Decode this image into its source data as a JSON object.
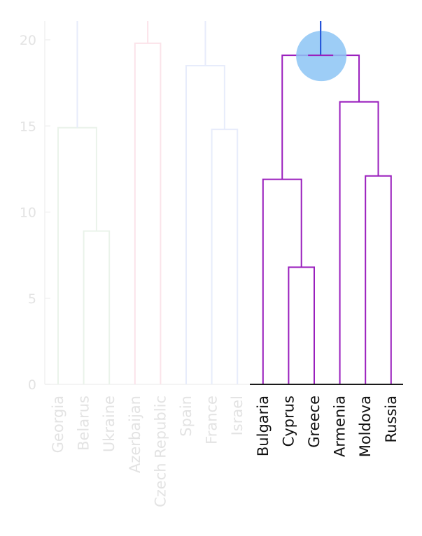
{
  "chart_data": {
    "type": "dendrogram",
    "title": "",
    "xlabel": "",
    "ylabel": "",
    "ylim": [
      0,
      21
    ],
    "yticks": [
      "0",
      "5",
      "10",
      "15",
      "20"
    ],
    "leaves": [
      "Georgia",
      "Belarus",
      "Ukraine",
      "Azerbaijan",
      "Czech Republic",
      "Spain",
      "France",
      "Israel",
      "Bulgaria",
      "Cyprus",
      "Greece",
      "Armenia",
      "Moldova",
      "Russia"
    ],
    "highlighted_leaves": [
      "Bulgaria",
      "Cyprus",
      "Greece",
      "Armenia",
      "Moldova",
      "Russia"
    ],
    "merges": [
      {
        "left": "Belarus",
        "right": "Ukraine",
        "height": 8.9,
        "id": "m1"
      },
      {
        "left": "Georgia",
        "right": "m1",
        "height": 14.9,
        "id": "m2"
      },
      {
        "left": "Azerbaijan",
        "right": "Czech Republic",
        "height": 19.8,
        "id": "m3"
      },
      {
        "left": "France",
        "right": "Israel",
        "height": 14.8,
        "id": "m4"
      },
      {
        "left": "Spain",
        "right": "m4",
        "height": 18.5,
        "id": "m5"
      },
      {
        "left": "Cyprus",
        "right": "Greece",
        "height": 6.8,
        "id": "m6"
      },
      {
        "left": "Bulgaria",
        "right": "m6",
        "height": 11.9,
        "id": "m7"
      },
      {
        "left": "Moldova",
        "right": "Russia",
        "height": 12.1,
        "id": "m8"
      },
      {
        "left": "Armenia",
        "right": "m8",
        "height": 16.4,
        "id": "m9"
      },
      {
        "left": "m7",
        "right": "m9",
        "height": 19.1,
        "id": "m10"
      }
    ],
    "highlight_node": "m10",
    "colors": {
      "highlight": "#9a1fbd",
      "root_stem": "#1f4fd8",
      "marker": "#8cc4f5",
      "faded_green": "#eaf3ea",
      "faded_red": "#fbe3ea",
      "faded_blue": "#e7ecfb",
      "faded_label": "#e3e3e3",
      "axis": "#1a1a1a"
    }
  }
}
